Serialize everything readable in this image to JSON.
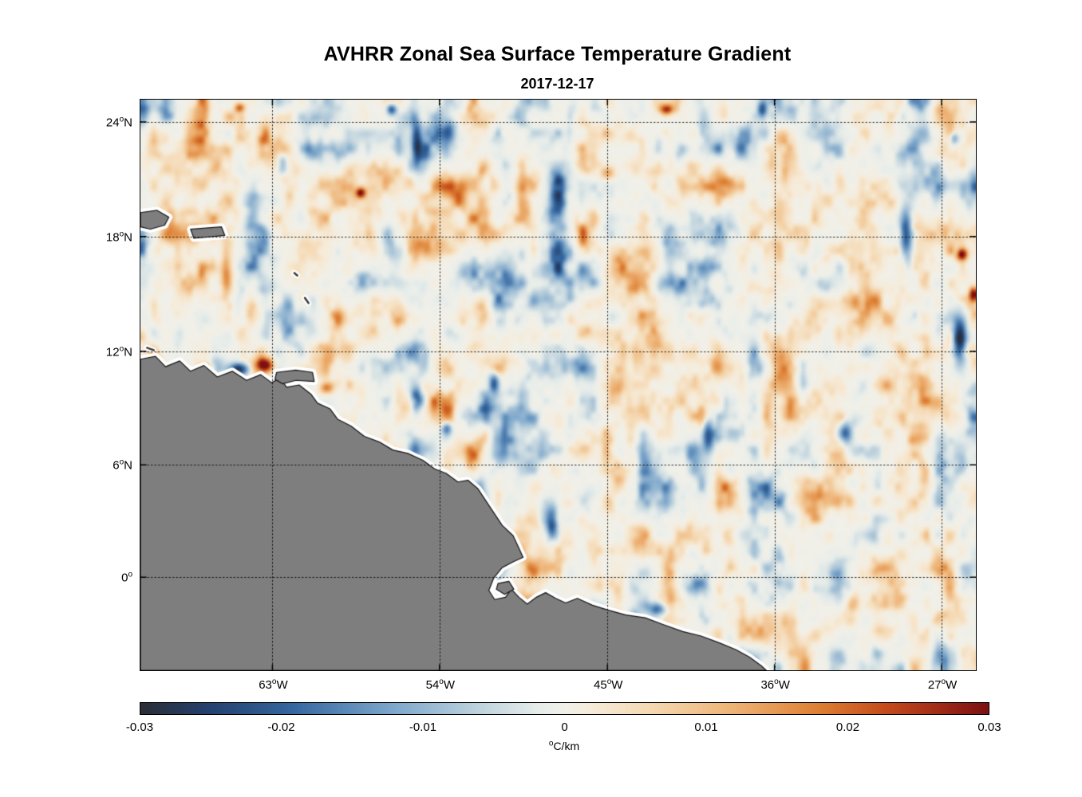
{
  "title": "AVHRR Zonal Sea Surface Temperature Gradient",
  "date": "2017-12-17",
  "axes": {
    "degree_symbol": "o",
    "lat_ticks": [
      {
        "label": "24",
        "hemi": "N",
        "f": 0.039
      },
      {
        "label": "18",
        "hemi": "N",
        "f": 0.24
      },
      {
        "label": "12",
        "hemi": "N",
        "f": 0.441
      },
      {
        "label": "6",
        "hemi": "N",
        "f": 0.64
      },
      {
        "label": "0",
        "hemi": "",
        "f": 0.837
      }
    ],
    "lon_ticks": [
      {
        "label": "63",
        "hemi": "W",
        "f": 0.158
      },
      {
        "label": "54",
        "hemi": "W",
        "f": 0.358
      },
      {
        "label": "45",
        "hemi": "W",
        "f": 0.559
      },
      {
        "label": "36",
        "hemi": "W",
        "f": 0.759
      },
      {
        "label": "27",
        "hemi": "W",
        "f": 0.959
      }
    ]
  },
  "colorbar": {
    "ticks": [
      "-0.03",
      "-0.02",
      "-0.01",
      "0",
      "0.01",
      "0.02",
      "0.03"
    ],
    "unit_degree": "o",
    "unit": "C/km"
  },
  "chart_data": {
    "type": "heatmap",
    "title": "AVHRR Zonal Sea Surface Temperature Gradient",
    "subtitle": "2017-12-17",
    "variable": "zonal sea surface temperature gradient",
    "units": "degC/km",
    "value_range": [
      -0.03,
      0.03
    ],
    "lon_range_deg": [
      -70.1,
      -25.2
    ],
    "lat_range_deg": [
      -5.0,
      25.2
    ],
    "lon_ticks_deg_west": [
      63,
      54,
      45,
      36,
      27
    ],
    "lat_ticks_deg_north": [
      24,
      18,
      12,
      6,
      0
    ],
    "grid": "dotted",
    "land_color": "#7e7e7e",
    "ocean_base_color": "#eef1ec",
    "colormap_stops": [
      {
        "t": 0.0,
        "c": "#2b2e35"
      },
      {
        "t": 0.08,
        "c": "#24406e"
      },
      {
        "t": 0.18,
        "c": "#35679f"
      },
      {
        "t": 0.3,
        "c": "#7fa8cc"
      },
      {
        "t": 0.4,
        "c": "#bfd3de"
      },
      {
        "t": 0.47,
        "c": "#e7edea"
      },
      {
        "t": 0.5,
        "c": "#f1f0e9"
      },
      {
        "t": 0.53,
        "c": "#f6ecda"
      },
      {
        "t": 0.6,
        "c": "#f5d9b3"
      },
      {
        "t": 0.7,
        "c": "#eeb274"
      },
      {
        "t": 0.8,
        "c": "#dd7f33"
      },
      {
        "t": 0.88,
        "c": "#c44a1c"
      },
      {
        "t": 1.0,
        "c": "#7c0f12"
      }
    ],
    "noise": {
      "seeds": [
        7,
        99,
        5
      ],
      "grids": [
        [
          30,
          13
        ],
        [
          68,
          34
        ],
        [
          140,
          72
        ]
      ],
      "weights": [
        0.55,
        0.33,
        0.12
      ],
      "shape_exp": 1.7,
      "amplitude": 0.032
    },
    "features": [
      {
        "x": 0.148,
        "y": 0.465,
        "rx": 0.01,
        "ry": 0.013,
        "amp": 0.034
      },
      {
        "x": 0.118,
        "y": 0.472,
        "rx": 0.013,
        "ry": 0.011,
        "amp": -0.03
      },
      {
        "x": 0.075,
        "y": 0.47,
        "rx": 0.008,
        "ry": 0.008,
        "amp": 0.022
      },
      {
        "x": 0.263,
        "y": 0.162,
        "rx": 0.006,
        "ry": 0.009,
        "amp": 0.03
      },
      {
        "x": 0.33,
        "y": 0.075,
        "rx": 0.006,
        "ry": 0.035,
        "amp": -0.02
      },
      {
        "x": 0.368,
        "y": 0.055,
        "rx": 0.008,
        "ry": 0.02,
        "amp": -0.018
      },
      {
        "x": 0.3,
        "y": 0.015,
        "rx": 0.006,
        "ry": 0.01,
        "amp": -0.022
      },
      {
        "x": 0.63,
        "y": 0.015,
        "rx": 0.008,
        "ry": 0.009,
        "amp": 0.026
      },
      {
        "x": 0.118,
        "y": 0.012,
        "rx": 0.006,
        "ry": 0.008,
        "amp": 0.02
      },
      {
        "x": 0.745,
        "y": 0.015,
        "rx": 0.006,
        "ry": 0.015,
        "amp": -0.02
      },
      {
        "x": 0.918,
        "y": 0.235,
        "rx": 0.008,
        "ry": 0.045,
        "amp": -0.026
      },
      {
        "x": 0.985,
        "y": 0.27,
        "rx": 0.006,
        "ry": 0.011,
        "amp": 0.034
      },
      {
        "x": 0.998,
        "y": 0.34,
        "rx": 0.005,
        "ry": 0.012,
        "amp": 0.028
      },
      {
        "x": 0.982,
        "y": 0.42,
        "rx": 0.008,
        "ry": 0.038,
        "amp": -0.032
      },
      {
        "x": 0.975,
        "y": 0.065,
        "rx": 0.006,
        "ry": 0.013,
        "amp": -0.018
      },
      {
        "x": 0.492,
        "y": 0.745,
        "rx": 0.01,
        "ry": 0.032,
        "amp": -0.026
      },
      {
        "x": 0.68,
        "y": 0.59,
        "rx": 0.007,
        "ry": 0.028,
        "amp": -0.022
      },
      {
        "x": 0.33,
        "y": 0.525,
        "rx": 0.008,
        "ry": 0.022,
        "amp": -0.024
      },
      {
        "x": 0.845,
        "y": 0.585,
        "rx": 0.008,
        "ry": 0.018,
        "amp": -0.02
      },
      {
        "x": 0.168,
        "y": 0.11,
        "rx": 0.007,
        "ry": 0.016,
        "amp": -0.018
      },
      {
        "x": 0.423,
        "y": 0.497,
        "rx": 0.006,
        "ry": 0.02,
        "amp": -0.022
      },
      {
        "x": 0.366,
        "y": 0.575,
        "rx": 0.006,
        "ry": 0.014,
        "amp": -0.02
      },
      {
        "x": 0.222,
        "y": 0.505,
        "rx": 0.008,
        "ry": 0.01,
        "amp": 0.018
      },
      {
        "x": 0.559,
        "y": 0.127,
        "rx": 0.008,
        "ry": 0.012,
        "amp": 0.015
      },
      {
        "x": 0.62,
        "y": 0.895,
        "rx": 0.012,
        "ry": 0.012,
        "amp": -0.02
      }
    ],
    "land_polygons": [
      [
        [
          0.0,
          0.455
        ],
        [
          0.018,
          0.45
        ],
        [
          0.03,
          0.468
        ],
        [
          0.047,
          0.458
        ],
        [
          0.06,
          0.476
        ],
        [
          0.076,
          0.466
        ],
        [
          0.092,
          0.486
        ],
        [
          0.11,
          0.476
        ],
        [
          0.127,
          0.492
        ],
        [
          0.144,
          0.482
        ],
        [
          0.157,
          0.496
        ],
        [
          0.167,
          0.488
        ],
        [
          0.175,
          0.504
        ],
        [
          0.19,
          0.5
        ],
        [
          0.204,
          0.516
        ],
        [
          0.212,
          0.532
        ],
        [
          0.227,
          0.542
        ],
        [
          0.236,
          0.56
        ],
        [
          0.252,
          0.572
        ],
        [
          0.268,
          0.59
        ],
        [
          0.286,
          0.6
        ],
        [
          0.302,
          0.614
        ],
        [
          0.32,
          0.62
        ],
        [
          0.338,
          0.632
        ],
        [
          0.352,
          0.647
        ],
        [
          0.366,
          0.655
        ],
        [
          0.38,
          0.67
        ],
        [
          0.392,
          0.667
        ],
        [
          0.404,
          0.682
        ],
        [
          0.413,
          0.702
        ],
        [
          0.423,
          0.724
        ],
        [
          0.433,
          0.746
        ],
        [
          0.446,
          0.764
        ],
        [
          0.453,
          0.786
        ],
        [
          0.458,
          0.802
        ],
        [
          0.446,
          0.81
        ],
        [
          0.433,
          0.82
        ],
        [
          0.423,
          0.838
        ],
        [
          0.417,
          0.86
        ],
        [
          0.424,
          0.876
        ],
        [
          0.437,
          0.872
        ],
        [
          0.444,
          0.858
        ],
        [
          0.453,
          0.872
        ],
        [
          0.463,
          0.884
        ],
        [
          0.474,
          0.872
        ],
        [
          0.485,
          0.864
        ],
        [
          0.497,
          0.874
        ],
        [
          0.509,
          0.882
        ],
        [
          0.523,
          0.874
        ],
        [
          0.541,
          0.886
        ],
        [
          0.561,
          0.895
        ],
        [
          0.581,
          0.903
        ],
        [
          0.604,
          0.908
        ],
        [
          0.626,
          0.92
        ],
        [
          0.649,
          0.932
        ],
        [
          0.671,
          0.94
        ],
        [
          0.693,
          0.952
        ],
        [
          0.713,
          0.964
        ],
        [
          0.729,
          0.977
        ],
        [
          0.743,
          0.992
        ],
        [
          0.749,
          1.0
        ],
        [
          0.0,
          1.0
        ]
      ],
      [
        [
          0.163,
          0.478
        ],
        [
          0.186,
          0.474
        ],
        [
          0.206,
          0.478
        ],
        [
          0.208,
          0.494
        ],
        [
          0.186,
          0.492
        ],
        [
          0.17,
          0.498
        ],
        [
          0.161,
          0.49
        ]
      ],
      [
        [
          0.0,
          0.198
        ],
        [
          0.02,
          0.194
        ],
        [
          0.034,
          0.206
        ],
        [
          0.029,
          0.22
        ],
        [
          0.012,
          0.227
        ],
        [
          0.0,
          0.223
        ]
      ],
      [
        [
          0.06,
          0.227
        ],
        [
          0.097,
          0.223
        ],
        [
          0.101,
          0.238
        ],
        [
          0.064,
          0.243
        ]
      ],
      [
        [
          0.428,
          0.848
        ],
        [
          0.441,
          0.844
        ],
        [
          0.447,
          0.858
        ],
        [
          0.436,
          0.867
        ],
        [
          0.426,
          0.858
        ]
      ]
    ],
    "islets": [
      {
        "x": 0.186,
        "y": 0.306,
        "len": 5,
        "ang": 40
      },
      {
        "x": 0.199,
        "y": 0.352,
        "len": 8,
        "ang": 55
      },
      {
        "x": 0.012,
        "y": 0.437,
        "len": 9,
        "ang": 20
      }
    ]
  }
}
